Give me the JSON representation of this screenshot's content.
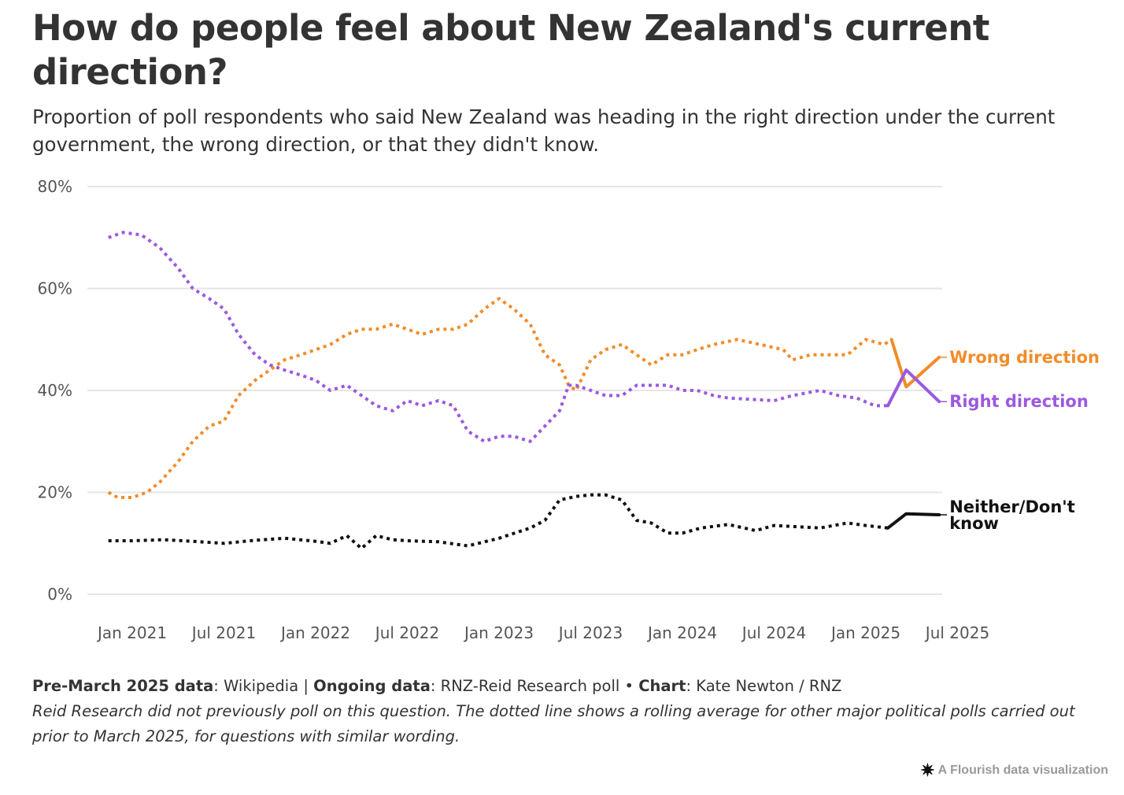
{
  "title": "How do people feel about New Zealand's current direction?",
  "subtitle": "Proportion of poll respondents who said New Zealand was heading in the right direction under the current government, the wrong direction, or that they didn't know.",
  "footer": {
    "pre_label": "Pre-March 2025 data",
    "pre_value": ": Wikipedia | ",
    "ongoing_label": "Ongoing data",
    "ongoing_value": ": RNZ-Reid Research poll • ",
    "chart_label": "Chart",
    "chart_value": ": Kate Newton / RNZ",
    "note": "Reid Research did not previously poll on this question. The dotted line shows a rolling average for other major political polls carried out prior to March 2025, for questions with similar wording."
  },
  "attribution": {
    "icon": "flourish-star-icon",
    "text": "A Flourish data visualization"
  },
  "colors": {
    "wrong": "#f28c28",
    "right": "#9b59e0",
    "neither": "#111111",
    "grid": "#e6e6e6"
  },
  "chart_data": {
    "type": "line",
    "title": "How do people feel about New Zealand's current direction?",
    "xlabel": "",
    "ylabel": "",
    "y_tick_labels": [
      "0%",
      "20%",
      "40%",
      "60%",
      "80%"
    ],
    "y_ticks": [
      0,
      20,
      40,
      60,
      80
    ],
    "ylim": [
      0,
      80
    ],
    "x_tick_labels": [
      "Jan 2021",
      "Jul 2021",
      "Jan 2022",
      "Jul 2022",
      "Jan 2023",
      "Jul 2023",
      "Jan 2024",
      "Jul 2024",
      "Jan 2025",
      "Jul 2025"
    ],
    "x_ticks": [
      2021.0,
      2021.5,
      2022.0,
      2022.5,
      2023.0,
      2023.5,
      2024.0,
      2024.5,
      2025.0,
      2025.5
    ],
    "xlim": [
      2020.8,
      2025.5
    ],
    "grid": true,
    "series": [
      {
        "name": "Wrong direction",
        "label": "Wrong direction",
        "color": "#f28c28",
        "dotted_until": 2025.14,
        "points": [
          [
            2020.87,
            20
          ],
          [
            2020.92,
            19
          ],
          [
            2021.0,
            19
          ],
          [
            2021.08,
            20
          ],
          [
            2021.15,
            22
          ],
          [
            2021.25,
            26
          ],
          [
            2021.33,
            30
          ],
          [
            2021.42,
            33
          ],
          [
            2021.5,
            34
          ],
          [
            2021.58,
            39
          ],
          [
            2021.67,
            42
          ],
          [
            2021.75,
            44
          ],
          [
            2021.83,
            46
          ],
          [
            2021.92,
            47
          ],
          [
            2022.0,
            48
          ],
          [
            2022.08,
            49
          ],
          [
            2022.17,
            51
          ],
          [
            2022.25,
            52
          ],
          [
            2022.33,
            52
          ],
          [
            2022.42,
            53
          ],
          [
            2022.5,
            52
          ],
          [
            2022.58,
            51
          ],
          [
            2022.67,
            52
          ],
          [
            2022.75,
            52
          ],
          [
            2022.83,
            53
          ],
          [
            2022.92,
            56
          ],
          [
            2023.0,
            58
          ],
          [
            2023.08,
            56
          ],
          [
            2023.17,
            53
          ],
          [
            2023.25,
            47
          ],
          [
            2023.33,
            45
          ],
          [
            2023.38,
            41
          ],
          [
            2023.42,
            40
          ],
          [
            2023.5,
            46
          ],
          [
            2023.58,
            48
          ],
          [
            2023.67,
            49
          ],
          [
            2023.75,
            47
          ],
          [
            2023.83,
            45
          ],
          [
            2023.92,
            47
          ],
          [
            2024.0,
            47
          ],
          [
            2024.08,
            48
          ],
          [
            2024.17,
            49
          ],
          [
            2024.3,
            50
          ],
          [
            2024.55,
            48
          ],
          [
            2024.6,
            46
          ],
          [
            2024.7,
            47
          ],
          [
            2024.9,
            47
          ],
          [
            2025.0,
            50
          ],
          [
            2025.1,
            49
          ],
          [
            2025.14,
            50
          ],
          [
            2025.22,
            40.7
          ],
          [
            2025.4,
            46.5
          ]
        ]
      },
      {
        "name": "Right direction",
        "label": "Right direction",
        "color": "#9b59e0",
        "dotted_until": 2025.12,
        "points": [
          [
            2020.87,
            70
          ],
          [
            2020.95,
            71
          ],
          [
            2021.05,
            70.5
          ],
          [
            2021.15,
            68
          ],
          [
            2021.25,
            64
          ],
          [
            2021.33,
            60
          ],
          [
            2021.42,
            58
          ],
          [
            2021.5,
            56
          ],
          [
            2021.58,
            51
          ],
          [
            2021.67,
            47
          ],
          [
            2021.75,
            45
          ],
          [
            2021.83,
            44
          ],
          [
            2021.92,
            43
          ],
          [
            2022.0,
            42
          ],
          [
            2022.08,
            40
          ],
          [
            2022.17,
            41
          ],
          [
            2022.25,
            39
          ],
          [
            2022.33,
            37
          ],
          [
            2022.42,
            36
          ],
          [
            2022.5,
            38
          ],
          [
            2022.58,
            37
          ],
          [
            2022.67,
            38
          ],
          [
            2022.75,
            37
          ],
          [
            2022.83,
            32
          ],
          [
            2022.92,
            30
          ],
          [
            2023.0,
            31
          ],
          [
            2023.08,
            31
          ],
          [
            2023.17,
            30
          ],
          [
            2023.25,
            33
          ],
          [
            2023.33,
            36
          ],
          [
            2023.38,
            41
          ],
          [
            2023.42,
            41
          ],
          [
            2023.5,
            40
          ],
          [
            2023.58,
            39
          ],
          [
            2023.67,
            39
          ],
          [
            2023.75,
            41
          ],
          [
            2023.83,
            41
          ],
          [
            2023.92,
            41
          ],
          [
            2024.0,
            40
          ],
          [
            2024.08,
            40
          ],
          [
            2024.17,
            39
          ],
          [
            2024.25,
            38.5
          ],
          [
            2024.5,
            38
          ],
          [
            2024.6,
            39
          ],
          [
            2024.75,
            40
          ],
          [
            2024.85,
            39
          ],
          [
            2024.95,
            38.5
          ],
          [
            2025.05,
            37
          ],
          [
            2025.12,
            37
          ],
          [
            2025.22,
            44
          ],
          [
            2025.4,
            37.8
          ]
        ]
      },
      {
        "name": "Neither/Don't know",
        "label": "Neither/Don't know",
        "color": "#111111",
        "dotted_until": 2025.12,
        "points": [
          [
            2020.87,
            10.5
          ],
          [
            2021.0,
            10.5
          ],
          [
            2021.17,
            10.7
          ],
          [
            2021.33,
            10.4
          ],
          [
            2021.5,
            10
          ],
          [
            2021.67,
            10.6
          ],
          [
            2021.83,
            11
          ],
          [
            2022.0,
            10.4
          ],
          [
            2022.08,
            10
          ],
          [
            2022.17,
            11.5
          ],
          [
            2022.25,
            9
          ],
          [
            2022.33,
            11.5
          ],
          [
            2022.42,
            10.7
          ],
          [
            2022.5,
            10.5
          ],
          [
            2022.67,
            10.3
          ],
          [
            2022.83,
            9.5
          ],
          [
            2023.0,
            11
          ],
          [
            2023.17,
            13
          ],
          [
            2023.25,
            14.5
          ],
          [
            2023.33,
            18.5
          ],
          [
            2023.42,
            19.2
          ],
          [
            2023.5,
            19.5
          ],
          [
            2023.58,
            19.5
          ],
          [
            2023.67,
            18.5
          ],
          [
            2023.75,
            14.5
          ],
          [
            2023.83,
            14
          ],
          [
            2023.92,
            12
          ],
          [
            2024.0,
            12
          ],
          [
            2024.1,
            13
          ],
          [
            2024.25,
            13.7
          ],
          [
            2024.4,
            12.5
          ],
          [
            2024.5,
            13.5
          ],
          [
            2024.75,
            13
          ],
          [
            2024.9,
            14
          ],
          [
            2025.0,
            13.5
          ],
          [
            2025.12,
            13
          ],
          [
            2025.22,
            15.8
          ],
          [
            2025.4,
            15.6
          ]
        ]
      }
    ]
  }
}
